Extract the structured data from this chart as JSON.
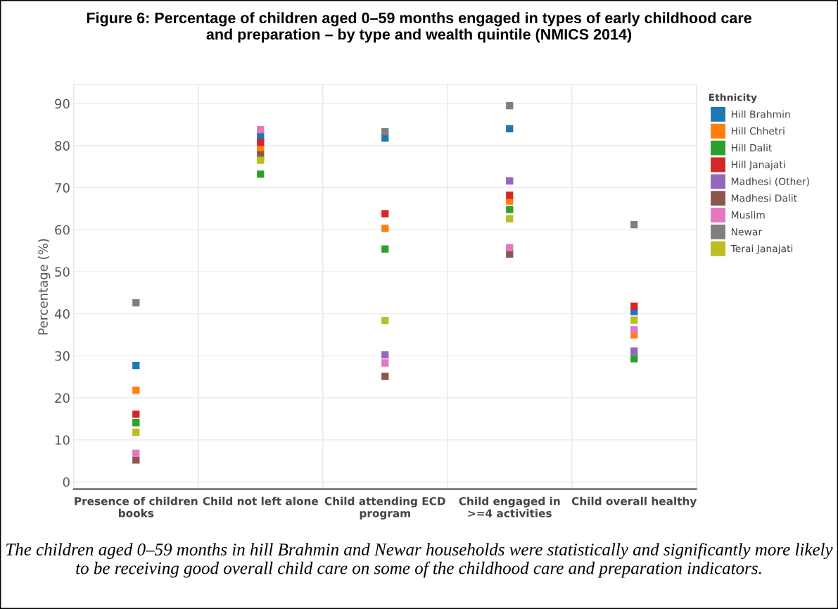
{
  "chart_data": {
    "type": "scatter",
    "title": "Figure 6: Percentage of children aged 0–59 months engaged in types of early childhood care\nand preparation – by type and wealth quintile (NMICS 2014)",
    "ylabel": "Percentage (%)",
    "legend_title": "Ethnicity",
    "categories": [
      "Presence of children\nbooks",
      "Child not left alone",
      "Child attending ECD\nprogram",
      "Child engaged in\n>=4 activities",
      "Child overall healthy"
    ],
    "series": [
      {
        "name": "Hill Brahmin",
        "color": "#1f77b4",
        "values": [
          27.7,
          82.1,
          81.8,
          84.0,
          40.5
        ]
      },
      {
        "name": "Hill Chhetri",
        "color": "#ff7f0e",
        "values": [
          21.8,
          79.5,
          60.3,
          66.8,
          35.0
        ]
      },
      {
        "name": "Hill Dalit",
        "color": "#2ca02c",
        "values": [
          14.1,
          73.2,
          55.4,
          64.8,
          29.3
        ]
      },
      {
        "name": "Hill Janajati",
        "color": "#d62728",
        "values": [
          16.1,
          80.8,
          63.8,
          68.2,
          41.8
        ]
      },
      {
        "name": "Madhesi (Other)",
        "color": "#9467bd",
        "values": [
          null,
          null,
          30.2,
          71.6,
          31.1
        ]
      },
      {
        "name": "Madhesi Dalit",
        "color": "#8c564b",
        "values": [
          5.2,
          77.8,
          25.1,
          54.2,
          null
        ]
      },
      {
        "name": "Muslim",
        "color": "#e377c2",
        "values": [
          6.8,
          83.8,
          28.3,
          55.7,
          36.2
        ]
      },
      {
        "name": "Newar",
        "color": "#7f7f7f",
        "values": [
          42.6,
          null,
          83.3,
          89.5,
          61.2
        ]
      },
      {
        "name": "Terai Janajati",
        "color": "#bcbd22",
        "values": [
          11.8,
          76.5,
          38.4,
          62.6,
          38.5
        ]
      }
    ],
    "ylim": [
      -1.7,
      94.5
    ],
    "yticks": [
      0,
      10,
      20,
      30,
      40,
      50,
      60,
      70,
      80,
      90
    ],
    "grid": "y",
    "legend": "top right",
    "marker": "square",
    "annotations": [
      "The children aged 0–59 months in hill Brahmin and Newar households were statistically and significantly more likely to be receiving good overall child care on some of the childhood care and preparation indicators."
    ]
  }
}
